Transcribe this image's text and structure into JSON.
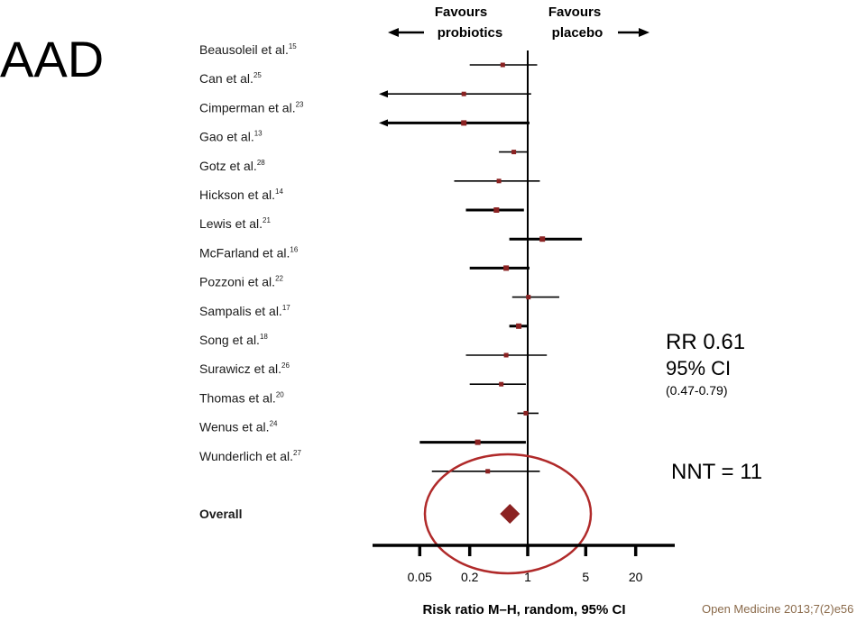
{
  "slide_title": "AAD",
  "stats": {
    "rr": "RR 0.61",
    "ci_label": "95% CI",
    "ci_range": "(0.47-0.79)",
    "nnt": "NNT = 11"
  },
  "citation": "Open Medicine 2013;7(2)e56",
  "colors": {
    "marker": "#8b2222",
    "circle": "#b02a2a",
    "line": "#000000"
  },
  "chart_data": {
    "type": "forest",
    "header_left": [
      "Favours",
      "probiotics"
    ],
    "header_right": [
      "Favours",
      "placebo"
    ],
    "xlabel": "Risk ratio M–H, random, 95% CI",
    "x_ticks": [
      0.05,
      0.2,
      1,
      5,
      20
    ],
    "x_tick_labels": [
      "0.05",
      "0.2",
      "1",
      "5",
      "20"
    ],
    "x_scale": "log",
    "studies": [
      {
        "name": "Beausoleil et al.",
        "ref": "15",
        "rr": 0.5,
        "lo": 0.2,
        "hi": 1.3,
        "weight": "thin"
      },
      {
        "name": "Can et al.",
        "ref": "25",
        "rr": 0.17,
        "lo": 0.02,
        "hi": 1.1,
        "weight": "thin",
        "arrow_lo": true
      },
      {
        "name": "Cimperman et al.",
        "ref": "23",
        "rr": 0.17,
        "lo": 0.02,
        "hi": 1.05,
        "weight": "thick",
        "arrow_lo": true
      },
      {
        "name": "Gao et al.",
        "ref": "13",
        "rr": 0.68,
        "lo": 0.45,
        "hi": 1.0,
        "weight": "thin"
      },
      {
        "name": "Gotz et al.",
        "ref": "28",
        "rr": 0.45,
        "lo": 0.13,
        "hi": 1.4,
        "weight": "thin"
      },
      {
        "name": "Hickson et al.",
        "ref": "14",
        "rr": 0.42,
        "lo": 0.18,
        "hi": 0.9,
        "weight": "thick"
      },
      {
        "name": "Lewis et al.",
        "ref": "21",
        "rr": 1.5,
        "lo": 0.6,
        "hi": 4.5,
        "weight": "thick"
      },
      {
        "name": "McFarland et al.",
        "ref": "16",
        "rr": 0.55,
        "lo": 0.2,
        "hi": 1.05,
        "weight": "thick"
      },
      {
        "name": "Pozzoni et al.",
        "ref": "22",
        "rr": 1.02,
        "lo": 0.65,
        "hi": 2.4,
        "weight": "thin"
      },
      {
        "name": "Sampalis et al.",
        "ref": "17",
        "rr": 0.78,
        "lo": 0.6,
        "hi": 1.0,
        "weight": "thick"
      },
      {
        "name": "Song et al.",
        "ref": "18",
        "rr": 0.55,
        "lo": 0.18,
        "hi": 1.7,
        "weight": "thin"
      },
      {
        "name": "Surawicz et al.",
        "ref": "26",
        "rr": 0.48,
        "lo": 0.2,
        "hi": 0.95,
        "weight": "thin"
      },
      {
        "name": "Thomas et al.",
        "ref": "20",
        "rr": 0.95,
        "lo": 0.75,
        "hi": 1.35,
        "weight": "thin"
      },
      {
        "name": "Wenus et al.",
        "ref": "24",
        "rr": 0.25,
        "lo": 0.05,
        "hi": 0.95,
        "weight": "thick"
      },
      {
        "name": "Wunderlich et al.",
        "ref": "27",
        "rr": 0.33,
        "lo": 0.07,
        "hi": 1.4,
        "weight": "thin"
      }
    ],
    "overall": {
      "name": "Overall",
      "rr": 0.61,
      "lo": 0.47,
      "hi": 0.79
    }
  }
}
